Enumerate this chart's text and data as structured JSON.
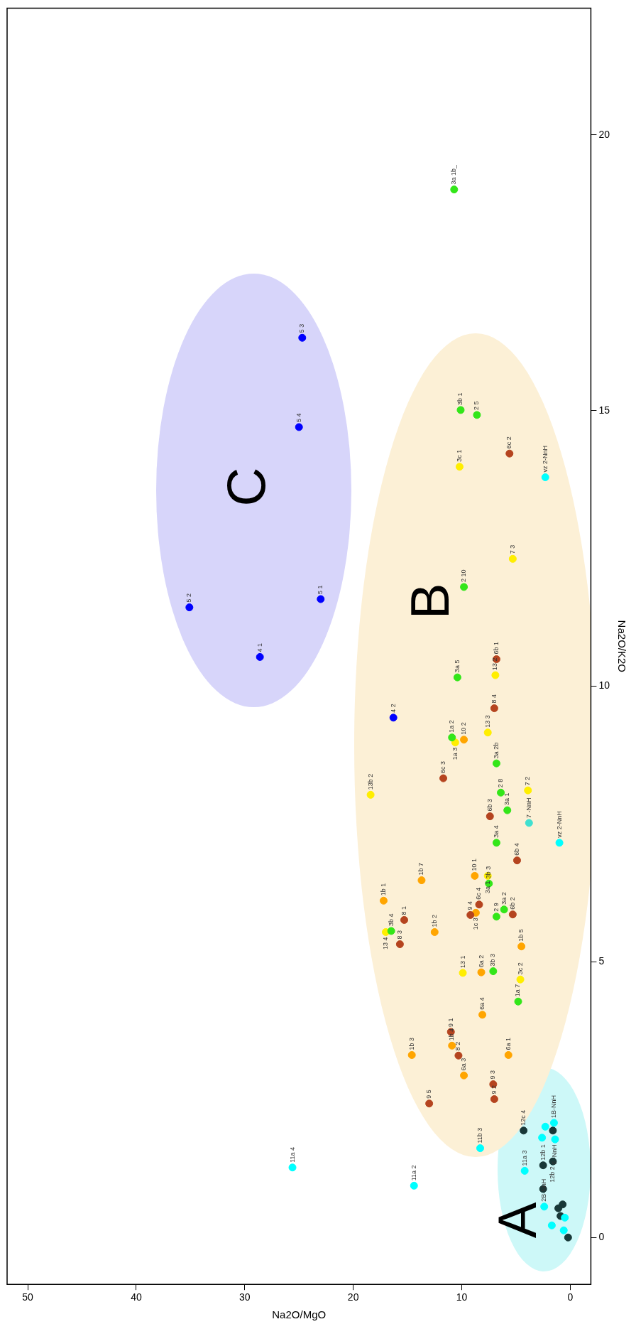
{
  "chart_data": {
    "type": "scatter",
    "xlabel": "Na2O/MgO",
    "ylabel": "Na2O/K2O",
    "xlim": [
      51.9,
      -1.9
    ],
    "ylim": [
      -0.85,
      22.3
    ],
    "xticks": [
      0,
      10,
      20,
      30,
      40,
      50
    ],
    "yticks": [
      0,
      5,
      10,
      15,
      20
    ],
    "grid": false,
    "legend": false,
    "marker": "circle",
    "annotations": [
      "A",
      "B",
      "C",
      {
        "text": "vz 2-NnH",
        "x": 2.3,
        "y": 13.79
      },
      {
        "text": "vz 2-NnH",
        "x": 1.0,
        "y": 7.16
      },
      {
        "text": "11a 4",
        "x": 25.6,
        "y": 1.27
      },
      {
        "text": "11a 2",
        "x": 14.4,
        "y": 0.94
      },
      {
        "text": "11b 3",
        "x": 8.3,
        "y": 1.62
      },
      {
        "text": "11a 3",
        "x": 4.2,
        "y": 1.21
      },
      {
        "text": "1B-NnH",
        "x": 1.5,
        "y": 2.08
      },
      {
        "text": "6 -NnH",
        "x": 1.4,
        "y": 1.78
      },
      {
        "text": "2B-NnH",
        "x": 2.4,
        "y": 0.56
      },
      {
        "text": "7 -NnH",
        "x": 3.8,
        "y": 7.52
      },
      {
        "text": "12c 4",
        "x": 4.3,
        "y": 1.94
      },
      {
        "text": "12b 2",
        "x": 1.6,
        "y": 1.38
      },
      {
        "text": "12b 1",
        "x": 2.5,
        "y": 1.31
      },
      {
        "text": "4 1",
        "x": 28.6,
        "y": 10.53
      },
      {
        "text": "5 2",
        "x": 35.1,
        "y": 11.43
      },
      {
        "text": "5 1",
        "x": 23.0,
        "y": 11.58
      },
      {
        "text": "5 4",
        "x": 25.0,
        "y": 14.7
      },
      {
        "text": "5 3",
        "x": 24.7,
        "y": 16.32
      },
      {
        "text": "4 2",
        "x": 16.3,
        "y": 9.43
      },
      {
        "text": "3a 1b_",
        "x": 10.7,
        "y": 19.01
      },
      {
        "text": "3b 1",
        "x": 10.1,
        "y": 15.01
      },
      {
        "text": "2 5",
        "x": 8.6,
        "y": 14.92
      },
      {
        "text": "2 10",
        "x": 9.8,
        "y": 11.8
      },
      {
        "text": "3a 5",
        "x": 10.4,
        "y": 10.16
      },
      {
        "text": "1a 2",
        "x": 10.9,
        "y": 9.07
      },
      {
        "text": "3a 2b",
        "x": 6.8,
        "y": 8.6
      },
      {
        "text": "2 8",
        "x": 6.4,
        "y": 8.07
      },
      {
        "text": "3a 1",
        "x": 5.8,
        "y": 7.75
      },
      {
        "text": "3a 4",
        "x": 6.8,
        "y": 7.16
      },
      {
        "text": "3b 3",
        "x": 7.5,
        "y": 6.42
      },
      {
        "text": "3a 2",
        "x": 6.1,
        "y": 5.95
      },
      {
        "text": "2 9",
        "x": 6.8,
        "y": 5.82
      },
      {
        "text": "3b 3",
        "x": 7.1,
        "y": 4.83
      },
      {
        "text": "1a 7",
        "x": 4.8,
        "y": 4.28
      },
      {
        "text": "3b 4",
        "x": 16.5,
        "y": 5.56
      },
      {
        "text": "6c 2",
        "x": 5.6,
        "y": 14.22
      },
      {
        "text": "6b 1",
        "x": 6.8,
        "y": 10.49
      },
      {
        "text": "8 4",
        "x": 7.0,
        "y": 9.6
      },
      {
        "text": "6c 3",
        "x": 11.7,
        "y": 8.33
      },
      {
        "text": "6b 3",
        "x": 7.4,
        "y": 7.64
      },
      {
        "text": "6b 4",
        "x": 4.9,
        "y": 6.84
      },
      {
        "text": "6c 4",
        "x": 8.4,
        "y": 6.04
      },
      {
        "text": "9 4",
        "x": 9.2,
        "y": 5.85
      },
      {
        "text": "6b 2",
        "x": 5.3,
        "y": 5.86
      },
      {
        "text": "8 1",
        "x": 15.3,
        "y": 5.76
      },
      {
        "text": "8 3",
        "x": 15.7,
        "y": 5.32
      },
      {
        "text": "9 1",
        "x": 11.0,
        "y": 3.73
      },
      {
        "text": "8 2",
        "x": 10.3,
        "y": 3.3
      },
      {
        "text": "9 3",
        "x": 7.1,
        "y": 2.78
      },
      {
        "text": "9 2",
        "x": 7.0,
        "y": 2.51
      },
      {
        "text": "9 5",
        "x": 13.0,
        "y": 2.43
      },
      {
        "text": "10 2",
        "x": 9.8,
        "y": 9.03
      },
      {
        "text": "10 1",
        "x": 8.8,
        "y": 6.56
      },
      {
        "text": "1b 7",
        "x": 13.7,
        "y": 6.48
      },
      {
        "text": "1b 1",
        "x": 17.2,
        "y": 6.11
      },
      {
        "text": "1b 2",
        "x": 12.5,
        "y": 5.54
      },
      {
        "text": "1c 3",
        "x": 8.7,
        "y": 5.89
      },
      {
        "text": "1b 5",
        "x": 4.5,
        "y": 5.28
      },
      {
        "text": "6a 2",
        "x": 8.2,
        "y": 4.81
      },
      {
        "text": "6a 4",
        "x": 8.1,
        "y": 4.04
      },
      {
        "text": "1b 3",
        "x": 14.6,
        "y": 3.31
      },
      {
        "text": "1b 4",
        "x": 10.9,
        "y": 3.48
      },
      {
        "text": "6a 3",
        "x": 9.8,
        "y": 2.94
      },
      {
        "text": "6a 1",
        "x": 5.7,
        "y": 3.31
      },
      {
        "text": "3c 1",
        "x": 10.2,
        "y": 13.98
      },
      {
        "text": "7 3",
        "x": 5.3,
        "y": 12.31
      },
      {
        "text": "13 2",
        "x": 6.9,
        "y": 10.2
      },
      {
        "text": "13 3",
        "x": 7.6,
        "y": 9.16
      },
      {
        "text": "1a 3",
        "x": 10.6,
        "y": 8.98
      },
      {
        "text": "13b 2",
        "x": 18.4,
        "y": 8.03
      },
      {
        "text": "7 2",
        "x": 3.9,
        "y": 8.11
      },
      {
        "text": "3a 1",
        "x": 7.6,
        "y": 6.56
      },
      {
        "text": "13 4",
        "x": 17.0,
        "y": 5.54
      },
      {
        "text": "13 1",
        "x": 9.9,
        "y": 4.8
      },
      {
        "text": "3c 2",
        "x": 4.6,
        "y": 4.68
      }
    ],
    "series": [
      {
        "color": "#00ffff",
        "x": [
          2.3,
          1.0,
          25.6,
          14.4,
          8.3,
          4.2,
          1.5,
          2.3,
          1.4,
          2.6,
          2.4,
          0.5,
          1.7,
          0.6
        ],
        "values": [
          13.79,
          7.16,
          1.27,
          0.94,
          1.62,
          1.21,
          2.08,
          2.01,
          1.78,
          1.81,
          0.56,
          0.36,
          0.22,
          0.13
        ]
      },
      {
        "color": "#40e0d0",
        "x": [
          3.8
        ],
        "values": [
          7.52
        ]
      },
      {
        "color": "#183838",
        "x": [
          4.3,
          1.6,
          1.6,
          2.5,
          2.5,
          0.7,
          1.1,
          0.9,
          0.2
        ],
        "values": [
          1.94,
          1.94,
          1.38,
          1.31,
          0.88,
          0.6,
          0.53,
          0.39,
          0.0
        ]
      },
      {
        "color": "#0000ff",
        "x": [
          28.6,
          35.1,
          23.0,
          25.0,
          24.7,
          16.3
        ],
        "values": [
          10.53,
          11.43,
          11.58,
          14.7,
          16.32,
          9.43
        ]
      },
      {
        "color": "#33e619",
        "x": [
          10.7,
          10.1,
          8.6,
          9.8,
          10.4,
          10.9,
          6.8,
          6.4,
          5.8,
          6.8,
          7.5,
          6.1,
          6.8,
          7.1,
          4.8,
          16.5
        ],
        "values": [
          19.01,
          15.01,
          14.92,
          11.8,
          10.16,
          9.07,
          8.6,
          8.07,
          7.75,
          7.16,
          6.42,
          5.95,
          5.82,
          4.83,
          4.28,
          5.56
        ]
      },
      {
        "color": "#b5441f",
        "x": [
          5.6,
          6.8,
          7.0,
          11.7,
          7.4,
          4.9,
          8.4,
          9.2,
          5.3,
          15.3,
          15.7,
          11.0,
          10.3,
          7.1,
          7.0,
          13.0
        ],
        "values": [
          14.22,
          10.49,
          9.6,
          8.33,
          7.64,
          6.84,
          6.04,
          5.85,
          5.86,
          5.76,
          5.32,
          3.73,
          3.3,
          2.78,
          2.51,
          2.43
        ]
      },
      {
        "color": "#ffa500",
        "x": [
          9.8,
          8.8,
          13.7,
          17.2,
          12.5,
          8.7,
          4.5,
          8.2,
          8.1,
          14.6,
          10.9,
          9.8,
          5.7
        ],
        "values": [
          9.03,
          6.56,
          6.48,
          6.11,
          5.54,
          5.89,
          5.28,
          4.81,
          4.04,
          3.31,
          3.48,
          2.94,
          3.31
        ]
      },
      {
        "color": "#ffee00",
        "x": [
          10.2,
          5.3,
          6.9,
          7.6,
          10.6,
          18.4,
          3.9,
          7.6,
          17.0,
          9.9,
          4.6
        ],
        "values": [
          13.98,
          12.31,
          10.2,
          9.16,
          8.98,
          8.03,
          8.11,
          6.56,
          5.54,
          4.8,
          4.68
        ]
      }
    ]
  }
}
